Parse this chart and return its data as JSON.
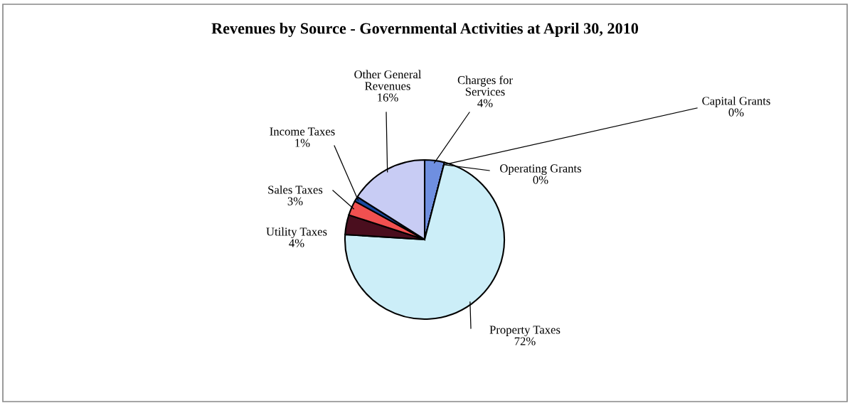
{
  "chart_data": {
    "type": "pie",
    "title": "Revenues by Source - Governmental Activities at April 30, 2010",
    "categories": [
      "Charges for\nServices",
      "Capital Grants",
      "Operating Grants",
      "Property Taxes",
      "Utility Taxes",
      "Sales Taxes",
      "Income Taxes",
      "Other General\nRevenues"
    ],
    "values": [
      4,
      0,
      0,
      72,
      4,
      3,
      1,
      16
    ],
    "colors": [
      "#6f8fe0",
      "#1c2c5c",
      "#000000",
      "#cceef8",
      "#4a0e1e",
      "#f05050",
      "#1a4aa0",
      "#c8ccf4"
    ],
    "value_labels": [
      "4%",
      "0%",
      "0%",
      "72%",
      "4%",
      "3%",
      "1%",
      "16%"
    ]
  }
}
